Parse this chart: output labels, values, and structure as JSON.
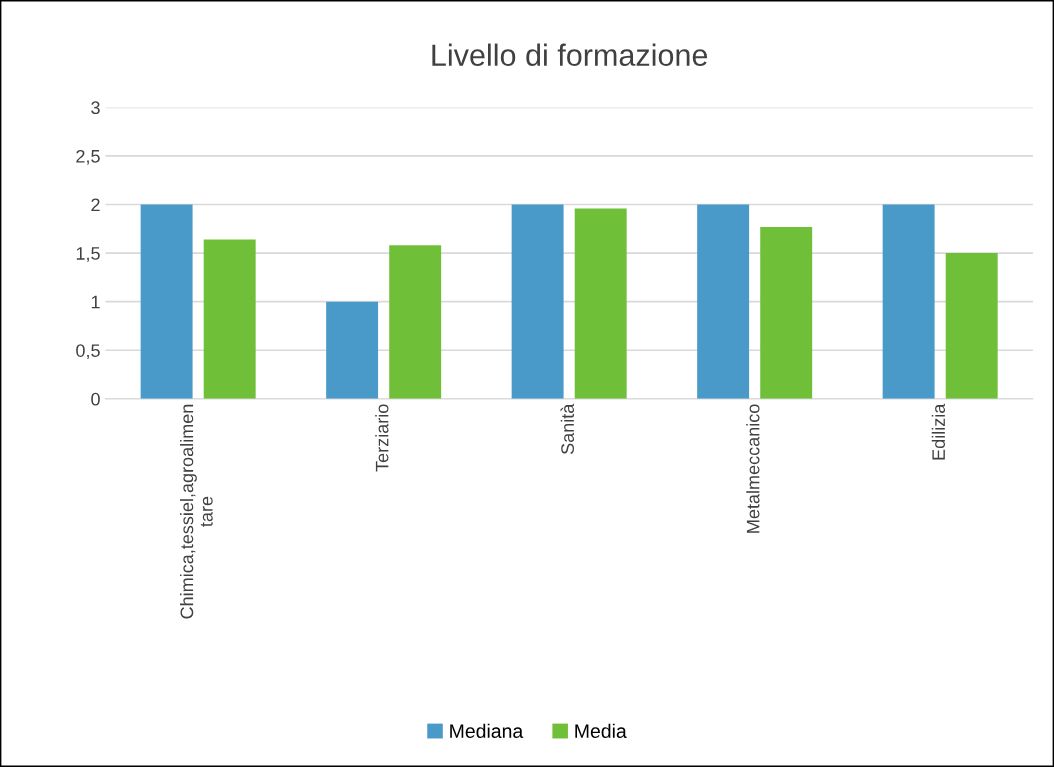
{
  "chart_data": {
    "type": "bar",
    "title": "Livello di formazione",
    "categories": [
      "Chimica,tessiel,agroalimen\ntare",
      "Terziario",
      "Sanità",
      "Metalmeccanico",
      "Edilizia"
    ],
    "series": [
      {
        "name": "Mediana",
        "color": "#4a9ac9",
        "values": [
          2,
          1,
          2,
          2,
          2
        ]
      },
      {
        "name": "Media",
        "color": "#6fbf38",
        "values": [
          1.64,
          1.58,
          1.96,
          1.77,
          1.5
        ]
      }
    ],
    "ylim": [
      0,
      3
    ],
    "yticks": [
      0,
      {
        "value": 0.5,
        "label": "0,5"
      },
      1,
      {
        "value": 1.5,
        "label": "1,5"
      },
      2,
      {
        "value": 2.5,
        "label": "2,5"
      },
      3
    ],
    "grid": "y",
    "legend": "bottom"
  }
}
